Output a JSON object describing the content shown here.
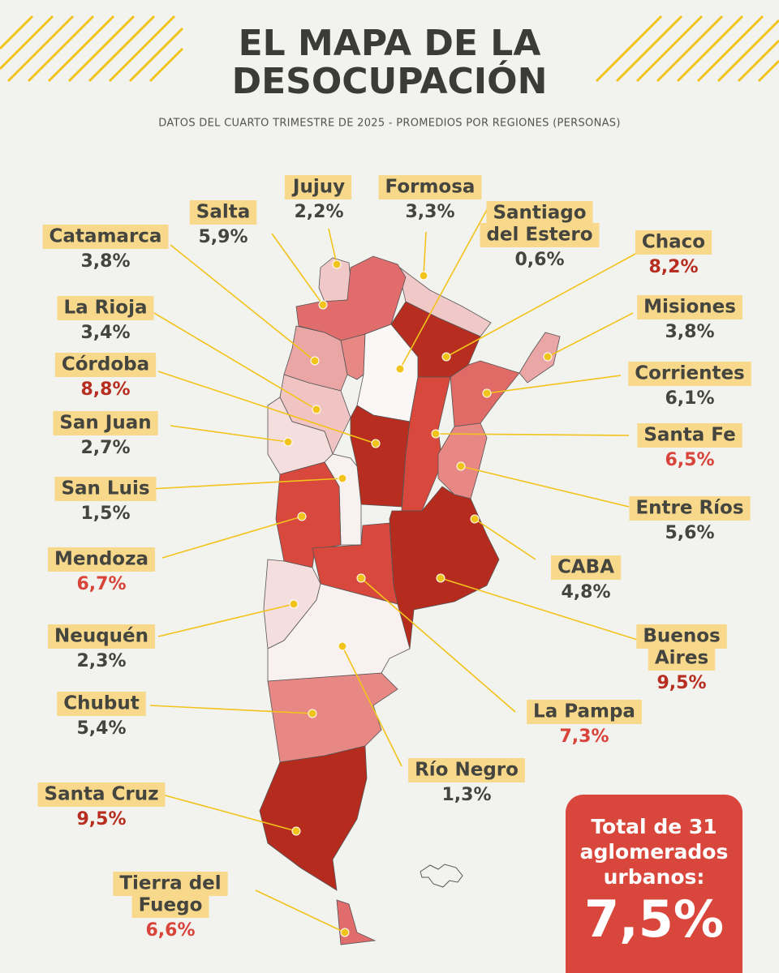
{
  "header": {
    "title": [
      "EL MAPA DE LA",
      "DESOCUPACIÓN"
    ],
    "subtitle": "DATOS DEL CUARTO TRIMESTRE DE 2025 - PROMEDIOS POR REGIONES (PERSONAS)"
  },
  "provinces": [
    {
      "name": "Jujuy",
      "value": "2,2%",
      "fill": "#f1c8c8",
      "value_color": "#45453f"
    },
    {
      "name": "Formosa",
      "value": "3,3%",
      "fill": "#f1c8c8",
      "value_color": "#45453f"
    },
    {
      "name": "Salta",
      "value": "5,9%",
      "fill": "#e06c6c",
      "value_color": "#45453f"
    },
    {
      "name": [
        "Santiago",
        "del Estero"
      ],
      "value": "0,6%",
      "fill": "#faf7f6",
      "value_color": "#45453f"
    },
    {
      "name": "Catamarca",
      "value": "3,8%",
      "fill": "#eaa5a5",
      "value_color": "#45453f"
    },
    {
      "name": "Chaco",
      "value": "8,2%",
      "fill": "#b72e20",
      "value_color": "#b72e20"
    },
    {
      "name": "La Rioja",
      "value": "3,4%",
      "fill": "#f1c4c4",
      "value_color": "#45453f"
    },
    {
      "name": "Misiones",
      "value": "3,8%",
      "fill": "#eaa5a5",
      "value_color": "#45453f"
    },
    {
      "name": "Córdoba",
      "value": "8,8%",
      "fill": "#b72e20",
      "value_color": "#b72e20"
    },
    {
      "name": "Corrientes",
      "value": "6,1%",
      "fill": "#e06a65",
      "value_color": "#45453f"
    },
    {
      "name": "San Juan",
      "value": "2,7%",
      "fill": "#f5dede",
      "value_color": "#45453f"
    },
    {
      "name": "Santa Fe",
      "value": "6,5%",
      "fill": "#d9483d",
      "value_color": "#d9443a"
    },
    {
      "name": "San Luis",
      "value": "1,5%",
      "fill": "#f8f1f0",
      "value_color": "#45453f"
    },
    {
      "name": "Entre Ríos",
      "value": "5,6%",
      "fill": "#e88884",
      "value_color": "#45453f"
    },
    {
      "name": "Mendoza",
      "value": "6,7%",
      "fill": "#d9483d",
      "value_color": "#d9443a"
    },
    {
      "name": "CABA",
      "value": "4,8%",
      "fill": "#eaa5a5",
      "value_color": "#45453f"
    },
    {
      "name": "Neuquén",
      "value": "2,3%",
      "fill": "#f5dede",
      "value_color": "#45453f"
    },
    {
      "name": [
        "Buenos",
        "Aires"
      ],
      "value": "9,5%",
      "fill": "#b52c1e",
      "value_color": "#b72e20"
    },
    {
      "name": "Chubut",
      "value": "5,4%",
      "fill": "#e88884",
      "value_color": "#45453f"
    },
    {
      "name": "La Pampa",
      "value": "7,3%",
      "fill": "#d9483d",
      "value_color": "#d9443a"
    },
    {
      "name": "Santa Cruz",
      "value": "9,5%",
      "fill": "#b52c1e",
      "value_color": "#b72e20"
    },
    {
      "name": "Río Negro",
      "value": "1,3%",
      "fill": "#f8f1f0",
      "value_color": "#45453f"
    },
    {
      "name": [
        "Tierra del",
        "Fuego"
      ],
      "value": "6,6%",
      "fill": "#e06c6c",
      "value_color": "#d9443a"
    }
  ],
  "total": {
    "label": [
      "Total de 31",
      "aglomerados",
      "urbanos:"
    ],
    "value": "7,5%"
  }
}
